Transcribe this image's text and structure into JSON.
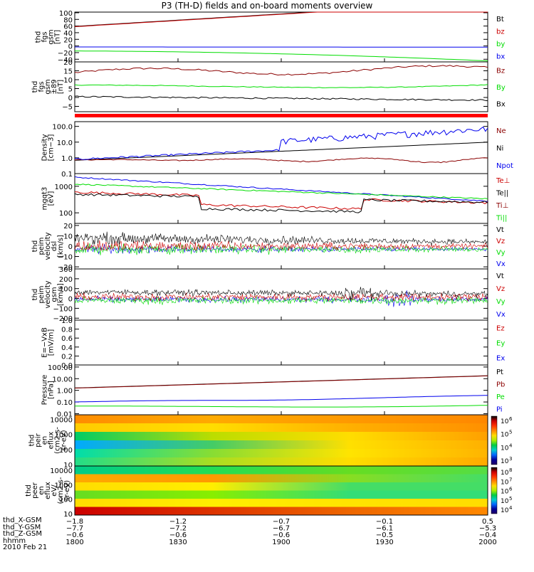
{
  "title": "P3 (TH-D) fields and on-board moments overview",
  "colors": {
    "black": "#000000",
    "red": "#cc0000",
    "green": "#00dd00",
    "blue": "#0000ee",
    "darkred": "#8b0000",
    "sep": "#ff0000"
  },
  "panels": [
    {
      "id": "fgs",
      "ylabel": [
        "thd",
        "fgs",
        "gsm",
        "[nT]"
      ],
      "scale": "linear",
      "ylim": [
        -48,
        102
      ],
      "ticks": [
        "100",
        "80",
        "60",
        "40",
        "20",
        "0",
        "−20",
        "−40"
      ],
      "tickvals": [
        100,
        80,
        60,
        40,
        20,
        0,
        -20,
        -40
      ],
      "legend": [
        {
          "text": "Bt",
          "color": "black"
        },
        {
          "text": "bz",
          "color": "red"
        },
        {
          "text": "by",
          "color": "green"
        },
        {
          "text": "bx",
          "color": "blue"
        }
      ]
    },
    {
      "id": "fgs2",
      "ylabel": [
        "thd",
        "fgs",
        "gsm",
        "±89",
        "[nT]"
      ],
      "scale": "linear",
      "ylim": [
        -8,
        20
      ],
      "ticks": [
        "20",
        "15",
        "10",
        "5",
        "0",
        "−5"
      ],
      "tickvals": [
        20,
        15,
        10,
        5,
        0,
        -5
      ],
      "legend": [
        {
          "text": "Bz",
          "color": "darkred"
        },
        {
          "text": "By",
          "color": "green"
        },
        {
          "text": "Bx",
          "color": "black"
        }
      ]
    },
    {
      "id": "density",
      "ylabel": [
        "Density",
        "[cm−3]"
      ],
      "scale": "log",
      "ylim": [
        0.1,
        200
      ],
      "ticks": [
        "100.0",
        "10.0",
        "1.0",
        "0.1"
      ],
      "tickvals": [
        100,
        10,
        1,
        0.1
      ],
      "legend": [
        {
          "text": "Ne",
          "color": "darkred"
        },
        {
          "text": "Ni",
          "color": "black"
        },
        {
          "text": "Npot",
          "color": "blue"
        }
      ]
    },
    {
      "id": "temp",
      "ylabel": [
        "mgqt3",
        "[eV]"
      ],
      "scale": "log",
      "ylim": [
        40,
        3000
      ],
      "ticks": [
        "1000",
        "100"
      ],
      "tickvals": [
        1000,
        100
      ],
      "legend": [
        {
          "text": "Te⊥",
          "color": "red"
        },
        {
          "text": "Te||",
          "color": "black"
        },
        {
          "text": "Ti⊥",
          "color": "darkred"
        },
        {
          "text": "Ti||",
          "color": "green"
        }
      ]
    },
    {
      "id": "vel1",
      "ylabel": [
        "thd",
        "peim",
        "velocity",
        "dsl",
        "[km/s]"
      ],
      "scale": "linear",
      "ylim": [
        -22,
        22
      ],
      "ticks": [
        "20",
        "10",
        "0",
        "−10",
        "−20"
      ],
      "tickvals": [
        20,
        10,
        0,
        -10,
        -20
      ],
      "legend": [
        {
          "text": "Vt",
          "color": "black"
        },
        {
          "text": "Vz",
          "color": "red"
        },
        {
          "text": "Vy",
          "color": "green"
        },
        {
          "text": "Vx",
          "color": "blue"
        }
      ]
    },
    {
      "id": "vel2",
      "ylabel": [
        "thd",
        "peim",
        "velocity",
        "gsm",
        "[km/s]"
      ],
      "scale": "linear",
      "ylim": [
        -220,
        300
      ],
      "ticks": [
        "300",
        "200",
        "100",
        "0",
        "−100",
        "−200"
      ],
      "tickvals": [
        300,
        200,
        100,
        0,
        -100,
        -200
      ],
      "legend": [
        {
          "text": "Vt",
          "color": "black"
        },
        {
          "text": "Vz",
          "color": "red"
        },
        {
          "text": "Vy",
          "color": "green"
        },
        {
          "text": "Vx",
          "color": "blue"
        }
      ]
    },
    {
      "id": "efield",
      "ylabel": [
        "E=−VxB",
        "[mV/m]"
      ],
      "scale": "linear",
      "ylim": [
        0,
        1
      ],
      "ticks": [
        "1.0",
        "0.8",
        "0.6",
        "0.4",
        "0.2",
        "0.0"
      ],
      "tickvals": [
        1,
        0.8,
        0.6,
        0.4,
        0.2,
        0
      ],
      "legend": [
        {
          "text": "Ez",
          "color": "red"
        },
        {
          "text": "Ey",
          "color": "green"
        },
        {
          "text": "Ex",
          "color": "blue"
        }
      ]
    },
    {
      "id": "pressure",
      "ylabel": [
        "Pressure",
        "[nPa]"
      ],
      "scale": "log",
      "ylim": [
        0.008,
        150
      ],
      "ticks": [
        "100.00",
        "10.00",
        "1.00",
        "0.10",
        "0.01"
      ],
      "tickvals": [
        100,
        10,
        1,
        0.1,
        0.01
      ],
      "legend": [
        {
          "text": "Pt",
          "color": "black"
        },
        {
          "text": "Pb",
          "color": "darkred"
        },
        {
          "text": "Pe",
          "color": "green"
        },
        {
          "text": "Pi",
          "color": "blue"
        }
      ]
    },
    {
      "id": "ion_spec",
      "ylabel": [
        "thd",
        "peir",
        "en",
        "eflux",
        "(cm2-s-",
        "sr-eV)"
      ],
      "scale": "log",
      "ylim": [
        8,
        20000
      ],
      "ticks": [
        "10000",
        "1000",
        "100",
        "10"
      ],
      "tickvals": [
        10000,
        1000,
        100,
        10
      ],
      "cbar_exp": [
        "6",
        "5",
        "4",
        "3"
      ]
    },
    {
      "id": "ele_spec",
      "ylabel": [
        "thd",
        "peer",
        "en",
        "eflux",
        "eV/",
        "(cm2-s-",
        "sr-eV)"
      ],
      "scale": "log",
      "ylim": [
        8,
        20000
      ],
      "ticks": [
        "10000",
        "1000",
        "100",
        "10"
      ],
      "tickvals": [
        10000,
        1000,
        100,
        10
      ],
      "cbar_exp": [
        "8",
        "7",
        "6",
        "5",
        "4"
      ]
    }
  ],
  "ephem": [
    {
      "label": "thd_X-GSM",
      "values": [
        "−1.8",
        "−1.2",
        "−0.7",
        "−0.1",
        "0.5"
      ]
    },
    {
      "label": "thd_Y-GSM",
      "values": [
        "−7.7",
        "−7.2",
        "−6.7",
        "−6.1",
        "−5.3"
      ]
    },
    {
      "label": "thd_Z-GSM",
      "values": [
        "−0.6",
        "−0.6",
        "−0.6",
        "−0.5",
        "−0.4"
      ]
    },
    {
      "label": "hhmm",
      "values": [
        "1800",
        "1830",
        "1900",
        "1930",
        "2000"
      ]
    }
  ],
  "date": "2010 Feb 21"
}
